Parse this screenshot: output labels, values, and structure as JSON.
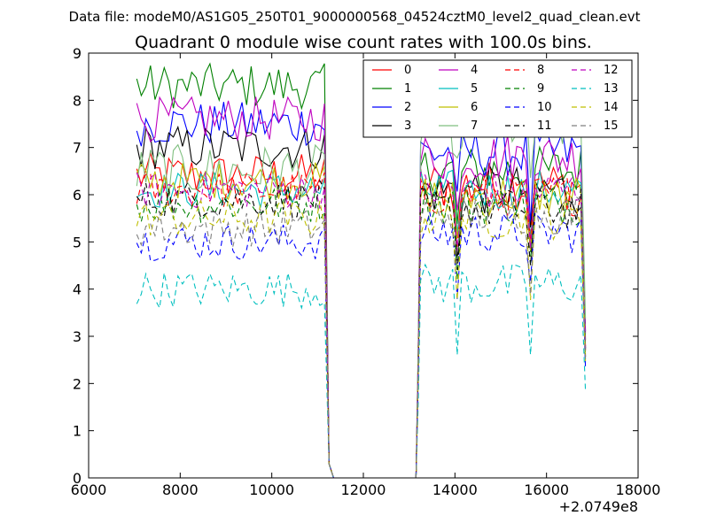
{
  "chart_data": {
    "type": "line",
    "suptitle": "Data file: modeM0/AS1G05_250T01_9000000568_04524cztM0_level2_quad_clean.evt",
    "title": "Quadrant 0 module wise count rates with 100.0s bins.",
    "xlabel": "",
    "ylabel": "",
    "x_offset_label": "+2.0749e8",
    "xlim": [
      6000,
      18000
    ],
    "ylim": [
      0,
      9
    ],
    "xticks": [
      6000,
      8000,
      10000,
      12000,
      14000,
      16000,
      18000
    ],
    "xtick_labels": [
      "6000",
      "8000",
      "10000",
      "12000",
      "14000",
      "16000",
      "18000"
    ],
    "yticks": [
      0,
      1,
      2,
      3,
      4,
      5,
      6,
      7,
      8,
      9
    ],
    "ytick_labels": [
      "0",
      "1",
      "2",
      "3",
      "4",
      "5",
      "6",
      "7",
      "8",
      "9"
    ],
    "grid": false,
    "legend_position": "top-right",
    "bin_width": 100,
    "segments": [
      {
        "start": 7050,
        "end": 11150
      },
      {
        "start": 13150,
        "end": 16850
      }
    ],
    "gap_level": 0,
    "series": [
      {
        "name": "0",
        "color": "#ff0000",
        "dash": "solid",
        "level1": 6.4,
        "level2": 6.2,
        "noise": 0.3
      },
      {
        "name": "1",
        "color": "#008000",
        "dash": "solid",
        "level1": 8.3,
        "level2": 6.5,
        "noise": 0.3
      },
      {
        "name": "2",
        "color": "#0000ff",
        "dash": "solid",
        "level1": 7.5,
        "level2": 6.9,
        "noise": 0.3
      },
      {
        "name": "3",
        "color": "#000000",
        "dash": "solid",
        "level1": 7.0,
        "level2": 6.1,
        "noise": 0.3
      },
      {
        "name": "4",
        "color": "#bf00bf",
        "dash": "solid",
        "level1": 7.6,
        "level2": 6.8,
        "noise": 0.3
      },
      {
        "name": "5",
        "color": "#00bfbf",
        "dash": "solid",
        "level1": 6.1,
        "level2": 6.1,
        "noise": 0.25
      },
      {
        "name": "6",
        "color": "#bfbf00",
        "dash": "solid",
        "level1": 6.3,
        "level2": 6.0,
        "noise": 0.25
      },
      {
        "name": "7",
        "color": "#7fbf7f",
        "dash": "solid",
        "level1": 6.5,
        "level2": 7.5,
        "noise": 0.35
      },
      {
        "name": "8",
        "color": "#ff0000",
        "dash": "dashed",
        "level1": 6.1,
        "level2": 6.0,
        "noise": 0.25
      },
      {
        "name": "9",
        "color": "#008000",
        "dash": "dashed",
        "level1": 5.8,
        "level2": 5.8,
        "noise": 0.25
      },
      {
        "name": "10",
        "color": "#0000ff",
        "dash": "dashed",
        "level1": 5.0,
        "level2": 5.2,
        "noise": 0.25
      },
      {
        "name": "11",
        "color": "#000000",
        "dash": "dashed",
        "level1": 5.9,
        "level2": 5.7,
        "noise": 0.25
      },
      {
        "name": "12",
        "color": "#bf00bf",
        "dash": "dashed",
        "level1": 6.1,
        "level2": 6.1,
        "noise": 0.25
      },
      {
        "name": "13",
        "color": "#00bfbf",
        "dash": "dashed",
        "level1": 4.0,
        "level2": 4.1,
        "noise": 0.25
      },
      {
        "name": "14",
        "color": "#bfbf00",
        "dash": "dashed",
        "level1": 5.5,
        "level2": 5.5,
        "noise": 0.25
      },
      {
        "name": "15",
        "color": "#7f7f7f",
        "dash": "dashed",
        "level1": 5.3,
        "level2": 5.6,
        "noise": 0.25
      }
    ]
  }
}
